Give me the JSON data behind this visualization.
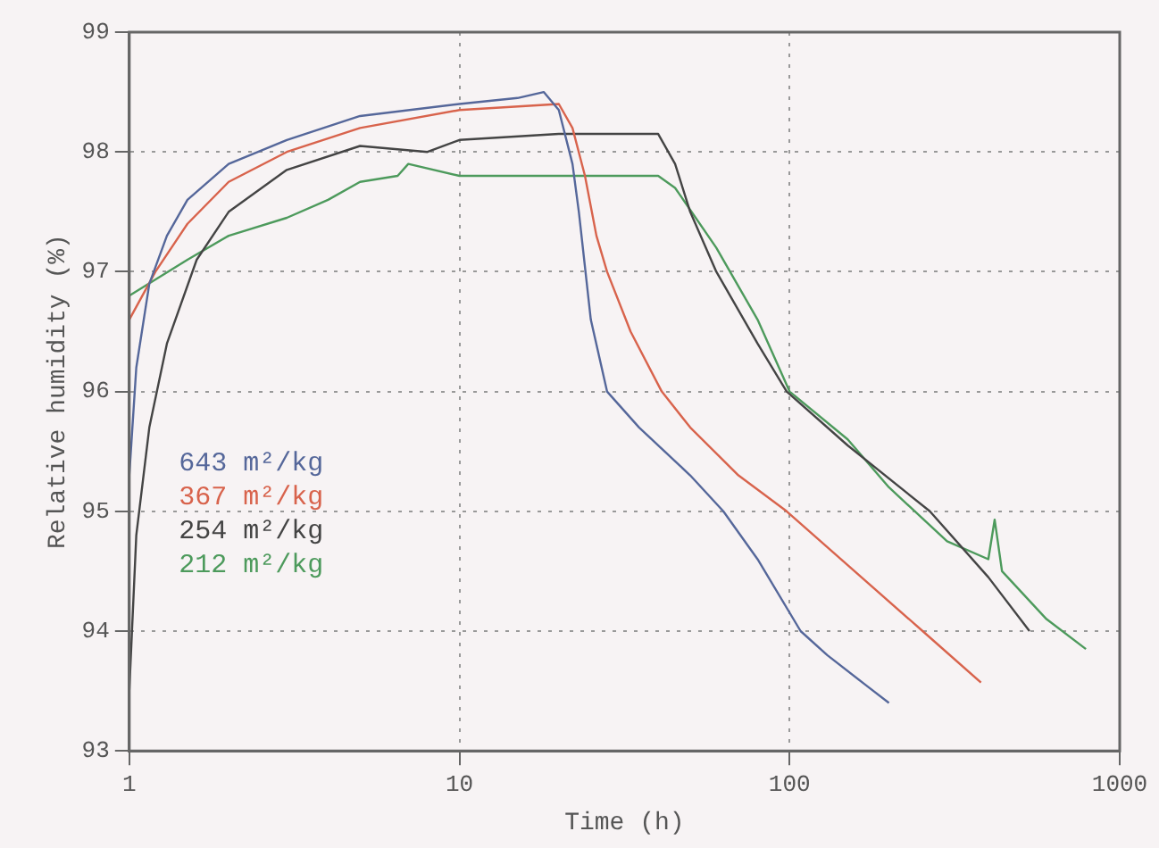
{
  "chart_data": {
    "type": "line",
    "xlabel": "Time (h)",
    "ylabel": "Relative humidity (%)",
    "log": "x",
    "xlim": [
      1,
      1000
    ],
    "xticks": [
      1,
      10,
      100,
      1000
    ],
    "ylim": [
      93,
      99
    ],
    "yticks": [
      93,
      94,
      95,
      96,
      97,
      98,
      99
    ],
    "grid": true,
    "legend": "left",
    "marker": "none",
    "line_style": "solid",
    "series": [
      {
        "name": "643 m²/kg",
        "color": "#55679a",
        "x": [
          1,
          1.05,
          1.15,
          1.3,
          1.5,
          2,
          3,
          5,
          10,
          15,
          18,
          20,
          22,
          23,
          25,
          28,
          35,
          50,
          63,
          80,
          108,
          130,
          170,
          200
        ],
        "values": [
          95.3,
          96.2,
          96.9,
          97.3,
          97.6,
          97.9,
          98.1,
          98.3,
          98.4,
          98.45,
          98.5,
          98.35,
          97.9,
          97.5,
          96.6,
          96.0,
          95.7,
          95.3,
          95.0,
          94.6,
          94.0,
          93.8,
          93.55,
          93.4
        ]
      },
      {
        "name": "367 m²/kg",
        "color": "#d8634c",
        "x": [
          1,
          1.2,
          1.5,
          2,
          3,
          5,
          10,
          20,
          22,
          24,
          26,
          28,
          33,
          41,
          50,
          70,
          98,
          150,
          253,
          380
        ],
        "values": [
          96.6,
          97.0,
          97.4,
          97.75,
          98.0,
          98.2,
          98.35,
          98.4,
          98.2,
          97.8,
          97.3,
          97.0,
          96.5,
          96.0,
          95.7,
          95.3,
          95.0,
          94.55,
          94.0,
          93.57
        ]
      },
      {
        "name": "254 m²/kg",
        "color": "#444444",
        "x": [
          1,
          1.05,
          1.15,
          1.3,
          1.6,
          2,
          3,
          5,
          8,
          10,
          20,
          40,
          45,
          50,
          60,
          80,
          98,
          150,
          266,
          400,
          533
        ],
        "values": [
          93.5,
          94.8,
          95.7,
          96.4,
          97.1,
          97.5,
          97.85,
          98.05,
          98.0,
          98.1,
          98.15,
          98.15,
          97.9,
          97.5,
          97.0,
          96.4,
          96.0,
          95.55,
          95.0,
          94.45,
          94.0
        ]
      },
      {
        "name": "212 m²/kg",
        "color": "#4d9a5c",
        "x": [
          1,
          1.5,
          2,
          3,
          4,
          5,
          6.5,
          7,
          10,
          40,
          45,
          60,
          80,
          100,
          150,
          200,
          300,
          400,
          418,
          440,
          600,
          790
        ],
        "values": [
          96.8,
          97.1,
          97.3,
          97.45,
          97.6,
          97.75,
          97.8,
          97.9,
          97.8,
          97.8,
          97.7,
          97.2,
          96.6,
          96.0,
          95.6,
          95.2,
          94.75,
          94.6,
          94.93,
          94.5,
          94.1,
          93.85
        ]
      }
    ]
  }
}
